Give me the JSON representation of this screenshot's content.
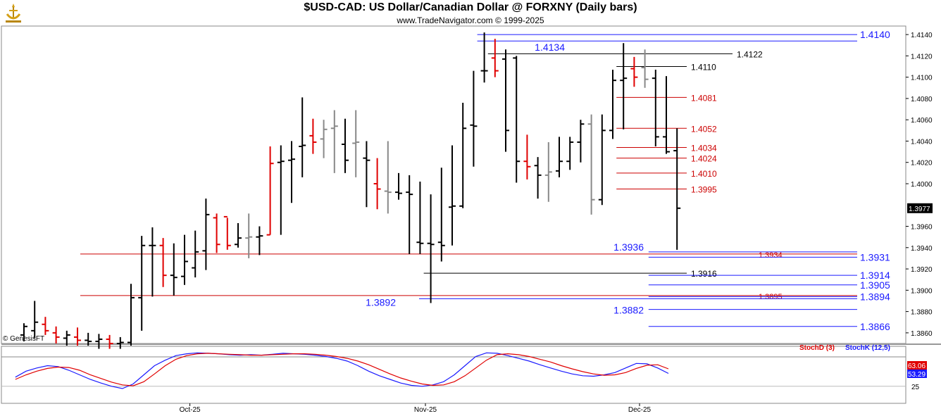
{
  "header": {
    "title": "$USD-CAD:  US Dollar/Canadian Dollar @ FORXNY  (Daily bars)",
    "subtitle": "www.TradeNavigator.com © 1999-2025"
  },
  "watermark": "© GenesisFT",
  "colors": {
    "black": "#000000",
    "red": "#e00000",
    "gray": "#888888",
    "blue": "#1a1aff",
    "levelRed": "#cc0000",
    "stochK": "#1a1aff",
    "stochD": "#e00000",
    "priceTag": "#000000"
  },
  "chart_data": [
    {
      "type": "ohlc",
      "title": "$USD-CAD:  US Dollar/Canadian Dollar @ FORXNY  (Daily bars)",
      "ylim": [
        1.385,
        1.4148
      ],
      "y_ticks": [
        {
          "value": 1.414,
          "label": "1.4140"
        },
        {
          "value": 1.412,
          "label": "1.4120"
        },
        {
          "value": 1.41,
          "label": "1.4100"
        },
        {
          "value": 1.408,
          "label": "1.4080"
        },
        {
          "value": 1.406,
          "label": "1.4060"
        },
        {
          "value": 1.404,
          "label": "1.4040"
        },
        {
          "value": 1.402,
          "label": "1.4020"
        },
        {
          "value": 1.4,
          "label": "1.4000"
        },
        {
          "value": 1.396,
          "label": "1.3960"
        },
        {
          "value": 1.394,
          "label": "1.3940"
        },
        {
          "value": 1.392,
          "label": "1.3920"
        },
        {
          "value": 1.39,
          "label": "1.3900"
        },
        {
          "value": 1.388,
          "label": "1.3880"
        },
        {
          "value": 1.386,
          "label": "1.3860"
        }
      ],
      "last_price": {
        "value": 1.3977,
        "label": "1.3977"
      },
      "x_labels": [
        {
          "bar": 15.5,
          "label": "Oct-25"
        },
        {
          "bar": 37.5,
          "label": "Nov-25"
        },
        {
          "bar": 57.5,
          "label": "Dec-25"
        }
      ],
      "bars": [
        {
          "o": 1.3858,
          "h": 1.3869,
          "l": 1.3852,
          "c": 1.3866,
          "color": "black"
        },
        {
          "o": 1.3862,
          "h": 1.389,
          "l": 1.3855,
          "c": 1.387,
          "color": "black"
        },
        {
          "o": 1.3868,
          "h": 1.3875,
          "l": 1.3858,
          "c": 1.3862,
          "color": "red"
        },
        {
          "o": 1.386,
          "h": 1.3866,
          "l": 1.385,
          "c": 1.3856,
          "color": "red"
        },
        {
          "o": 1.3855,
          "h": 1.3862,
          "l": 1.3848,
          "c": 1.3858,
          "color": "black"
        },
        {
          "o": 1.3856,
          "h": 1.3865,
          "l": 1.3848,
          "c": 1.3853,
          "color": "red"
        },
        {
          "o": 1.3853,
          "h": 1.386,
          "l": 1.3848,
          "c": 1.3852,
          "color": "black"
        },
        {
          "o": 1.3852,
          "h": 1.3859,
          "l": 1.3845,
          "c": 1.3854,
          "color": "black"
        },
        {
          "o": 1.3854,
          "h": 1.3858,
          "l": 1.3845,
          "c": 1.385,
          "color": "red"
        },
        {
          "o": 1.385,
          "h": 1.3856,
          "l": 1.3845,
          "c": 1.3851,
          "color": "black"
        },
        {
          "o": 1.3851,
          "h": 1.3906,
          "l": 1.3848,
          "c": 1.3893,
          "color": "black"
        },
        {
          "o": 1.3893,
          "h": 1.3951,
          "l": 1.3862,
          "c": 1.3942,
          "color": "black"
        },
        {
          "o": 1.3942,
          "h": 1.3959,
          "l": 1.3894,
          "c": 1.3942,
          "color": "black"
        },
        {
          "o": 1.3942,
          "h": 1.3949,
          "l": 1.3903,
          "c": 1.3914,
          "color": "red"
        },
        {
          "o": 1.3914,
          "h": 1.3944,
          "l": 1.3895,
          "c": 1.3912,
          "color": "black"
        },
        {
          "o": 1.3913,
          "h": 1.3952,
          "l": 1.3905,
          "c": 1.3927,
          "color": "black"
        },
        {
          "o": 1.3921,
          "h": 1.3956,
          "l": 1.3912,
          "c": 1.3936,
          "color": "black"
        },
        {
          "o": 1.3937,
          "h": 1.3986,
          "l": 1.3919,
          "c": 1.3971,
          "color": "black"
        },
        {
          "o": 1.3968,
          "h": 1.3972,
          "l": 1.3935,
          "c": 1.3943,
          "color": "red"
        },
        {
          "o": 1.3969,
          "h": 1.3968,
          "l": 1.3938,
          "c": 1.3942,
          "color": "red"
        },
        {
          "o": 1.3943,
          "h": 1.3963,
          "l": 1.394,
          "c": 1.3949,
          "color": "black"
        },
        {
          "o": 1.3949,
          "h": 1.3972,
          "l": 1.393,
          "c": 1.395,
          "color": "gray"
        },
        {
          "o": 1.395,
          "h": 1.396,
          "l": 1.3933,
          "c": 1.3951,
          "color": "black"
        },
        {
          "o": 1.3952,
          "h": 1.4035,
          "l": 1.3952,
          "c": 1.4019,
          "color": "red"
        },
        {
          "o": 1.402,
          "h": 1.4036,
          "l": 1.3952,
          "c": 1.4021,
          "color": "black"
        },
        {
          "o": 1.4022,
          "h": 1.404,
          "l": 1.3982,
          "c": 1.4023,
          "color": "black"
        },
        {
          "o": 1.4035,
          "h": 1.4081,
          "l": 1.4006,
          "c": 1.4036,
          "color": "black"
        },
        {
          "o": 1.4045,
          "h": 1.4061,
          "l": 1.4028,
          "c": 1.4039,
          "color": "red"
        },
        {
          "o": 1.4042,
          "h": 1.406,
          "l": 1.4024,
          "c": 1.4051,
          "color": "gray"
        },
        {
          "o": 1.4052,
          "h": 1.4069,
          "l": 1.401,
          "c": 1.4054,
          "color": "gray"
        },
        {
          "o": 1.4037,
          "h": 1.4061,
          "l": 1.401,
          "c": 1.4022,
          "color": "black"
        },
        {
          "o": 1.4038,
          "h": 1.4069,
          "l": 1.4006,
          "c": 1.4039,
          "color": "gray"
        },
        {
          "o": 1.4024,
          "h": 1.404,
          "l": 1.3978,
          "c": 1.4022,
          "color": "black"
        },
        {
          "o": 1.4,
          "h": 1.4024,
          "l": 1.3976,
          "c": 1.3995,
          "color": "red"
        },
        {
          "o": 1.3993,
          "h": 1.404,
          "l": 1.3972,
          "c": 1.3992,
          "color": "gray"
        },
        {
          "o": 1.3992,
          "h": 1.401,
          "l": 1.3985,
          "c": 1.3991,
          "color": "black"
        },
        {
          "o": 1.3992,
          "h": 1.4008,
          "l": 1.3934,
          "c": 1.399,
          "color": "black"
        },
        {
          "o": 1.3945,
          "h": 1.4002,
          "l": 1.3934,
          "c": 1.3944,
          "color": "black"
        },
        {
          "o": 1.3944,
          "h": 1.399,
          "l": 1.3888,
          "c": 1.3943,
          "color": "black"
        },
        {
          "o": 1.3945,
          "h": 1.4015,
          "l": 1.3927,
          "c": 1.3942,
          "color": "black"
        },
        {
          "o": 1.3978,
          "h": 1.4036,
          "l": 1.3942,
          "c": 1.3979,
          "color": "black"
        },
        {
          "o": 1.3979,
          "h": 1.4076,
          "l": 1.3977,
          "c": 1.4052,
          "color": "black"
        },
        {
          "o": 1.4055,
          "h": 1.4106,
          "l": 1.4016,
          "c": 1.4054,
          "color": "black"
        },
        {
          "o": 1.4106,
          "h": 1.4142,
          "l": 1.4095,
          "c": 1.4106,
          "color": "black"
        },
        {
          "o": 1.4118,
          "h": 1.4136,
          "l": 1.41,
          "c": 1.4106,
          "color": "red"
        },
        {
          "o": 1.4117,
          "h": 1.4126,
          "l": 1.403,
          "c": 1.405,
          "color": "black"
        },
        {
          "o": 1.4118,
          "h": 1.412,
          "l": 1.4001,
          "c": 1.4021,
          "color": "black"
        },
        {
          "o": 1.4021,
          "h": 1.4046,
          "l": 1.4004,
          "c": 1.4016,
          "color": "red"
        },
        {
          "o": 1.4017,
          "h": 1.4025,
          "l": 1.3986,
          "c": 1.4008,
          "color": "black"
        },
        {
          "o": 1.4008,
          "h": 1.4039,
          "l": 1.3983,
          "c": 1.4011,
          "color": "gray"
        },
        {
          "o": 1.4012,
          "h": 1.4044,
          "l": 1.4006,
          "c": 1.4021,
          "color": "black"
        },
        {
          "o": 1.4021,
          "h": 1.4044,
          "l": 1.4013,
          "c": 1.4039,
          "color": "black"
        },
        {
          "o": 1.4039,
          "h": 1.406,
          "l": 1.402,
          "c": 1.4056,
          "color": "black"
        },
        {
          "o": 1.4056,
          "h": 1.4065,
          "l": 1.3971,
          "c": 1.3985,
          "color": "gray"
        },
        {
          "o": 1.3985,
          "h": 1.4065,
          "l": 1.398,
          "c": 1.405,
          "color": "black"
        },
        {
          "o": 1.405,
          "h": 1.4107,
          "l": 1.4042,
          "c": 1.4097,
          "color": "black"
        },
        {
          "o": 1.4097,
          "h": 1.4132,
          "l": 1.4051,
          "c": 1.4099,
          "color": "black"
        },
        {
          "o": 1.4108,
          "h": 1.4119,
          "l": 1.4091,
          "c": 1.41,
          "color": "red"
        },
        {
          "o": 1.4109,
          "h": 1.4126,
          "l": 1.409,
          "c": 1.4098,
          "color": "gray"
        },
        {
          "o": 1.4099,
          "h": 1.4107,
          "l": 1.4035,
          "c": 1.4044,
          "color": "black"
        },
        {
          "o": 1.4044,
          "h": 1.4101,
          "l": 1.4028,
          "c": 1.403,
          "color": "black"
        },
        {
          "o": 1.4031,
          "h": 1.4052,
          "l": 1.3938,
          "c": 1.3977,
          "color": "black"
        }
      ],
      "levels": [
        {
          "value": 1.414,
          "label": "1.4140",
          "color": "blue",
          "from_bar": 43,
          "label_pos": "right-axis"
        },
        {
          "value": 1.4134,
          "label": "1.4134",
          "color": "blue",
          "from_bar": 43,
          "label_pos": "left"
        },
        {
          "value": 1.4122,
          "label": "1.4122",
          "color": "black",
          "from_bar": 44,
          "label_pos": "end"
        },
        {
          "value": 1.411,
          "label": "1.4110",
          "color": "black",
          "from_bar": 56,
          "label_pos": "end"
        },
        {
          "value": 1.4081,
          "label": "1.4081",
          "color": "red",
          "from_bar": 56,
          "label_pos": "end"
        },
        {
          "value": 1.4052,
          "label": "1.4052",
          "color": "red",
          "from_bar": 56,
          "label_pos": "end"
        },
        {
          "value": 1.4034,
          "label": "1.4034",
          "color": "red",
          "from_bar": 56,
          "label_pos": "end"
        },
        {
          "value": 1.4024,
          "label": "1.4024",
          "color": "red",
          "from_bar": 56,
          "label_pos": "end"
        },
        {
          "value": 1.401,
          "label": "1.4010",
          "color": "red",
          "from_bar": 56,
          "label_pos": "end"
        },
        {
          "value": 1.3995,
          "label": "1.3995",
          "color": "red",
          "from_bar": 56,
          "label_pos": "end"
        },
        {
          "value": 1.3936,
          "label": "1.3936",
          "color": "blue",
          "from_bar": 59,
          "label_pos": "left"
        },
        {
          "value": 1.3934,
          "label": "1.3934",
          "color": "red",
          "from_bar": 7,
          "label_pos": "mid"
        },
        {
          "value": 1.3931,
          "label": "1.3931",
          "color": "blue",
          "from_bar": 59,
          "label_pos": "right-axis"
        },
        {
          "value": 1.3916,
          "label": "1.3916",
          "color": "black",
          "from_bar": 38,
          "label_pos": "end"
        },
        {
          "value": 1.3914,
          "label": "1.3914",
          "color": "blue",
          "from_bar": 59,
          "label_pos": "right-axis"
        },
        {
          "value": 1.3905,
          "label": "1.3905",
          "color": "blue",
          "from_bar": 59,
          "label_pos": "right-axis"
        },
        {
          "value": 1.3895,
          "label": "1.3895",
          "color": "red",
          "from_bar": 7,
          "label_pos": "mid"
        },
        {
          "value": 1.3894,
          "label": "1.3894",
          "color": "blue",
          "from_bar": 59,
          "label_pos": "right-axis"
        },
        {
          "value": 1.3892,
          "label": "1.3892",
          "color": "blue",
          "from_bar": 38,
          "label_pos": "left"
        },
        {
          "value": 1.3882,
          "label": "1.3882",
          "color": "blue",
          "from_bar": 59,
          "label_pos": "left"
        },
        {
          "value": 1.3866,
          "label": "1.3866",
          "color": "blue",
          "from_bar": 59,
          "label_pos": "right-axis"
        }
      ]
    },
    {
      "type": "line",
      "title": "StochK (12,5) / StochD (3)",
      "ylim": [
        0,
        100
      ],
      "y_ticks": [
        {
          "value": 25,
          "label": "25"
        }
      ],
      "legend": [
        {
          "name": "StochD (3)",
          "color": "red"
        },
        {
          "name": "StochK (12,5)",
          "color": "blue"
        }
      ],
      "last_values": [
        {
          "name": "StochD (3)",
          "value": 63.06,
          "label": "63.06",
          "color": "red"
        },
        {
          "name": "StochK (12,5)",
          "value": 53.29,
          "label": "53.29",
          "color": "blue"
        }
      ],
      "series": [
        {
          "name": "StochK (12,5)",
          "color": "blue",
          "x_start": -1,
          "values": [
            45,
            58,
            65,
            70,
            68,
            60,
            50,
            40,
            32,
            25,
            20,
            30,
            50,
            70,
            82,
            92,
            96,
            98,
            97,
            96,
            94,
            93,
            94,
            93,
            95,
            97,
            96,
            95,
            93,
            90,
            86,
            80,
            70,
            58,
            48,
            40,
            32,
            27,
            25,
            28,
            35,
            50,
            70,
            90,
            98,
            97,
            92,
            86,
            80,
            72,
            65,
            58,
            52,
            48,
            47,
            50,
            55,
            65,
            75,
            74,
            65,
            53
          ]
        },
        {
          "name": "StochD (3)",
          "color": "red",
          "x_start": -1,
          "values": [
            40,
            50,
            58,
            64,
            67,
            66,
            60,
            50,
            42,
            34,
            28,
            26,
            35,
            52,
            70,
            84,
            92,
            96,
            97,
            96,
            95,
            94,
            93,
            93,
            94,
            95,
            96,
            96,
            95,
            93,
            90,
            86,
            80,
            72,
            62,
            52,
            43,
            36,
            30,
            27,
            28,
            35,
            48,
            65,
            82,
            94,
            96,
            94,
            90,
            84,
            78,
            70,
            63,
            57,
            52,
            49,
            50,
            55,
            64,
            71,
            72,
            63
          ]
        }
      ]
    }
  ]
}
